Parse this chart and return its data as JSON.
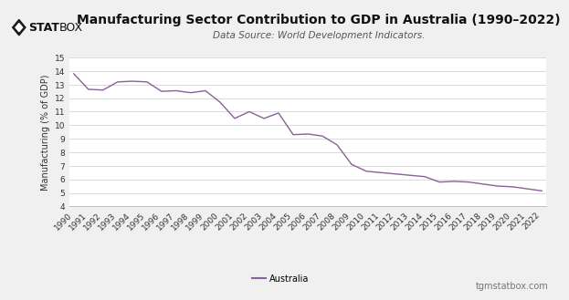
{
  "title": "Manufacturing Sector Contribution to GDP in Australia (1990–2022)",
  "subtitle": "Data Source: World Development Indicators.",
  "ylabel": "Manufacturing (% of GDP)",
  "background_color": "#f0f0f0",
  "plot_bg_color": "#ffffff",
  "line_color": "#8b6098",
  "years": [
    1990,
    1991,
    1992,
    1993,
    1994,
    1995,
    1996,
    1997,
    1998,
    1999,
    2000,
    2001,
    2002,
    2003,
    2004,
    2005,
    2006,
    2007,
    2008,
    2009,
    2010,
    2011,
    2012,
    2013,
    2014,
    2015,
    2016,
    2017,
    2018,
    2019,
    2020,
    2021,
    2022
  ],
  "values": [
    13.8,
    12.65,
    12.6,
    13.2,
    13.25,
    13.2,
    12.5,
    12.55,
    12.4,
    12.55,
    11.7,
    10.5,
    11.0,
    10.5,
    10.9,
    9.3,
    9.35,
    9.2,
    8.55,
    7.1,
    6.6,
    6.5,
    6.4,
    6.3,
    6.2,
    5.8,
    5.85,
    5.8,
    5.65,
    5.5,
    5.45,
    5.3,
    5.15
  ],
  "ylim": [
    4,
    15
  ],
  "yticks": [
    4,
    5,
    6,
    7,
    8,
    9,
    10,
    11,
    12,
    13,
    14,
    15
  ],
  "legend_label": "Australia",
  "watermark": "tgmstatbox.com",
  "title_fontsize": 10,
  "subtitle_fontsize": 7.5,
  "ylabel_fontsize": 7,
  "tick_fontsize": 6.5,
  "grid_color": "#cccccc",
  "text_color": "#333333",
  "axis_color": "#aaaaaa"
}
